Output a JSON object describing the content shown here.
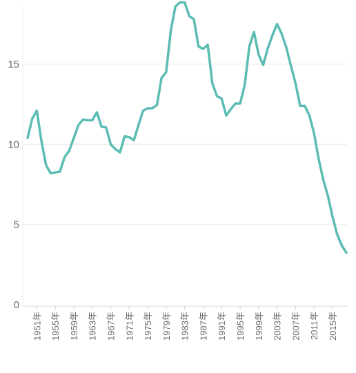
{
  "chart_data": {
    "type": "line",
    "title": "",
    "xlabel": "",
    "ylabel": "",
    "x": [
      1949,
      1950,
      1951,
      1952,
      1953,
      1954,
      1955,
      1956,
      1957,
      1958,
      1959,
      1960,
      1961,
      1962,
      1963,
      1964,
      1965,
      1966,
      1967,
      1968,
      1969,
      1970,
      1971,
      1972,
      1973,
      1974,
      1975,
      1976,
      1977,
      1978,
      1979,
      1980,
      1981,
      1982,
      1983,
      1984,
      1985,
      1986,
      1987,
      1988,
      1989,
      1990,
      1991,
      1992,
      1993,
      1994,
      1995,
      1996,
      1997,
      1998,
      1999,
      2000,
      2001,
      2002,
      2003,
      2004,
      2005,
      2006,
      2007,
      2008,
      2009,
      2010,
      2011,
      2012,
      2013,
      2014,
      2015,
      2016,
      2017,
      2018
    ],
    "y_ticks": [
      0,
      5,
      10,
      15
    ],
    "ylim": [
      0,
      19
    ],
    "x_tick_years": [
      1951,
      1955,
      1959,
      1963,
      1967,
      1971,
      1975,
      1979,
      1983,
      1987,
      1991,
      1995,
      1999,
      2003,
      2007,
      2011,
      2015
    ],
    "x_tick_suffix": "年",
    "grid": "horizontal",
    "series": [
      {
        "color": "#5bbcb3",
        "values": [
          10.4,
          11.6,
          12.1,
          10.2,
          8.7,
          8.2,
          8.25,
          8.3,
          9.2,
          9.6,
          10.4,
          11.2,
          11.55,
          11.5,
          11.5,
          12.0,
          11.1,
          11.05,
          10.0,
          9.7,
          9.5,
          10.5,
          10.45,
          10.25,
          11.2,
          12.1,
          12.25,
          12.25,
          12.45,
          14.15,
          14.5,
          17.1,
          18.6,
          18.85,
          18.85,
          18.0,
          17.8,
          16.1,
          15.95,
          16.2,
          13.8,
          13.0,
          12.85,
          11.8,
          12.2,
          12.55,
          12.55,
          13.7,
          16.1,
          17.0,
          15.6,
          14.95,
          16.0,
          16.8,
          17.5,
          16.9,
          16.05,
          14.9,
          13.8,
          12.4,
          12.4,
          11.8,
          10.7,
          9.1,
          7.8,
          6.8,
          5.5,
          4.4,
          3.7,
          3.25
        ]
      }
    ]
  }
}
